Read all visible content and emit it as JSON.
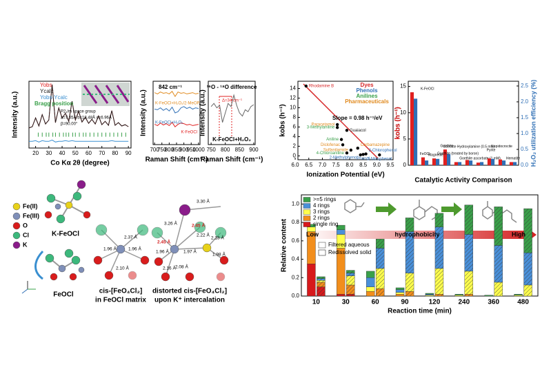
{
  "chart_data": [
    {
      "type": "line",
      "x_label": "Co Kα 2θ (degree)",
      "y_label": "Intensity (a.u.)",
      "annotations": [
        "P2₁/m space group",
        "a=7.65Å b=18.48Å c=6.96Å",
        "β=90.00°"
      ],
      "xlim": [
        15,
        92
      ],
      "xticks": [
        20,
        30,
        40,
        50,
        60,
        70,
        80,
        90
      ],
      "ylim": [
        0,
        10
      ],
      "x": [
        15,
        17.5,
        20,
        22.5,
        25,
        27.5,
        30,
        32.5,
        35,
        37.5,
        40,
        42.5,
        45,
        47.5,
        50,
        52.5,
        55,
        57.5,
        60,
        62.5,
        65,
        67.5,
        70,
        72.5,
        75,
        77.5,
        80,
        82.5,
        85,
        87.5,
        90
      ],
      "series": [
        {
          "name": "Yobs",
          "color": "#e02020",
          "values": [
            3.0,
            3.2,
            4.5,
            3.3,
            5.0,
            3.6,
            4.2,
            9.5,
            3.8,
            6.0,
            4.5,
            5.2,
            4.0,
            7.0,
            4.2,
            5.5,
            3.9,
            4.6,
            3.7,
            4.3,
            3.6,
            4.8,
            3.5,
            4.0,
            3.4,
            5.6,
            3.4,
            3.8,
            3.3,
            3.5,
            3.2
          ]
        },
        {
          "name": "Ycalc",
          "color": "#222222",
          "values": [
            3.0,
            3.2,
            4.5,
            3.3,
            5.0,
            3.6,
            4.2,
            9.5,
            3.8,
            6.0,
            4.5,
            5.2,
            4.0,
            7.0,
            4.2,
            5.5,
            3.9,
            4.6,
            3.7,
            4.3,
            3.6,
            4.8,
            3.5,
            4.0,
            3.4,
            5.6,
            3.4,
            3.8,
            3.3,
            3.5,
            3.2
          ]
        },
        {
          "name": "Yobs-Ycalc",
          "color": "#3a8fd0",
          "values": [
            1.0,
            1.0,
            1.1,
            0.9,
            1.1,
            1.0,
            1.0,
            1.2,
            0.9,
            1.0,
            1.0,
            1.1,
            1.0,
            1.1,
            1.0,
            1.0,
            1.0,
            1.0,
            1.0,
            1.0,
            1.0,
            1.0,
            1.0,
            1.0,
            1.0,
            1.1,
            1.0,
            1.0,
            1.0,
            1.0,
            1.0
          ]
        }
      ],
      "bragg_label": "Bragg position",
      "bragg_color": "#3aa04a",
      "bragg_level": 2,
      "bragg_positions": [
        22,
        25,
        28,
        30,
        33,
        35,
        38,
        41,
        43,
        45,
        48,
        50,
        53,
        56,
        58,
        61,
        64,
        67,
        70,
        73,
        76,
        79,
        82,
        85,
        88
      ]
    },
    {
      "type": "line",
      "x_label": "Raman Shift (cm⁻¹)",
      "y_label": "Intensity (a.u.)",
      "annotations": [
        "842 cm⁻¹"
      ],
      "xlim": [
        690,
        1010
      ],
      "xticks": [
        700,
        750,
        800,
        850,
        900,
        950,
        1000
      ],
      "ylim": [
        0,
        10
      ],
      "x": [
        700,
        720,
        740,
        760,
        780,
        800,
        820,
        840,
        860,
        880,
        900,
        920,
        940,
        960,
        980,
        1000
      ],
      "series": [
        {
          "name": "K-FeOCl+H₂O₂/2-MeOP",
          "color": "#e08a1e",
          "values": [
            8.2,
            8.0,
            8.3,
            8.1,
            8.2,
            8.0,
            8.4,
            7.6,
            8.3,
            8.1,
            8.2,
            8.0,
            8.1,
            8.2,
            8.0,
            8.1
          ]
        },
        {
          "name": "K-FeOCl+H₂O₂",
          "color": "#2f6fb5",
          "values": [
            5.6,
            5.5,
            5.8,
            5.4,
            5.7,
            5.3,
            5.9,
            5.0,
            5.2,
            5.8,
            6.0,
            5.7,
            5.9,
            5.6,
            5.8,
            5.7
          ]
        },
        {
          "name": "K-FeOCl",
          "color": "#e02020",
          "values": [
            3.2,
            3.0,
            3.4,
            3.1,
            3.3,
            3.0,
            3.5,
            2.8,
            3.2,
            3.4,
            3.3,
            3.1,
            3.2,
            3.0,
            3.1,
            3.2
          ]
        }
      ]
    },
    {
      "type": "line",
      "title": "¹⁶O - ¹⁸O difference",
      "x_label": "Raman Shift (cm⁻¹)",
      "y_label": "Intensity (a.u.)",
      "annotations": [
        "Δ=34 cm⁻¹",
        "K-FeOCl+H₂O₂"
      ],
      "xlim": [
        740,
        905
      ],
      "xticks": [
        750,
        800,
        850,
        900
      ],
      "ylim": [
        0,
        10
      ],
      "x": [
        750,
        760,
        770,
        780,
        790,
        800,
        810,
        820,
        830,
        840,
        850,
        860,
        870,
        880,
        890,
        900
      ],
      "series": [
        {
          "name": "K-FeOCl+H₂O₂",
          "color": "#666666",
          "values": [
            6,
            6.5,
            5.8,
            6.2,
            3.5,
            5.0,
            6.5,
            6.0,
            7.8,
            6.2,
            5.0,
            4.5,
            5.5,
            5.2,
            6.0,
            6.3
          ]
        }
      ]
    },
    {
      "type": "scatter",
      "x_label": "Ionization Potential (eV)",
      "y_label": "kobs (h⁻¹)",
      "annotation": "Slope = 0.98 h⁻¹/eV",
      "xlim": [
        6.1,
        9.6
      ],
      "xticks": [
        {
          "value": 6,
          "label": "6.0"
        },
        6.5,
        {
          "value": 7,
          "label": "7.0"
        },
        7.5,
        {
          "value": 8,
          "label": "8.0"
        },
        8.5,
        {
          "value": 9,
          "label": "9.0"
        },
        9.5
      ],
      "ylim": [
        -0.8,
        15.5
      ],
      "yticks": [
        0,
        2,
        4,
        6,
        8,
        10,
        12,
        14
      ],
      "legend": [
        {
          "name": "Dyes",
          "color": "#d62728"
        },
        {
          "name": "Phenols",
          "color": "#2f6fb5"
        },
        {
          "name": "Anilines",
          "color": "#3aa04a"
        },
        {
          "name": "Pharmaceuticals",
          "color": "#e08a1e"
        }
      ],
      "points": [
        {
          "label": "Rhodamine B",
          "x": 6.4,
          "y": 14.5,
          "color": "#d62728"
        },
        {
          "label": "Paracetamol",
          "x": 7.55,
          "y": 6.5,
          "color": "#e08a1e"
        },
        {
          "label": "3-Methylaniline",
          "x": 7.55,
          "y": 5.9,
          "color": "#3aa04a"
        },
        {
          "label": "Guaiacol",
          "x": 7.9,
          "y": 5.3,
          "color": "#222222"
        },
        {
          "label": "Aniline",
          "x": 7.7,
          "y": 3.4,
          "color": "#3aa04a"
        },
        {
          "label": "Diclofenac",
          "x": 7.75,
          "y": 2.3,
          "color": "#e08a1e"
        },
        {
          "label": "Sulfanilamide",
          "x": 8.05,
          "y": 1.2,
          "color": "#e08a1e"
        },
        {
          "label": "Carbamazepine",
          "x": 8.3,
          "y": 1.6,
          "color": "#e08a1e"
        },
        {
          "label": "4-Chloroaniline",
          "x": 7.9,
          "y": 0.6,
          "color": "#3aa04a"
        },
        {
          "label": "2-Methylphenol",
          "x": 8.4,
          "y": 0.2,
          "color": "#2f6fb5"
        },
        {
          "label": "Phenol",
          "x": 8.5,
          "y": 0.3,
          "color": "#2f6fb5"
        },
        {
          "label": "2-Chlorophenol",
          "x": 8.6,
          "y": 0.4,
          "color": "#2f6fb5"
        },
        {
          "label": "2-Nitrophenol",
          "x": 9.1,
          "y": 0.2,
          "color": "#2f6fb5"
        }
      ]
    },
    {
      "type": "bar",
      "x_label": "Catalytic Activity Comparison",
      "y_label": "kobs (h⁻¹)",
      "y2_label": "H₂O₂ utilization efficiency (%)",
      "categories": [
        "K-FeOCl",
        "FeOCl",
        "Magnetite",
        "Goethite",
        "Goethite (treated by boron)",
        "Goethite Hydroxylamine (0.5 mM)",
        "Goethite ascorbate (1 mM)",
        "Pyrite",
        "Lepidocrocite",
        "Hematite"
      ],
      "ylim": [
        0,
        16
      ],
      "yticks": [
        0,
        5,
        10,
        15
      ],
      "y2lim": [
        0,
        2.65
      ],
      "y2ticks": [
        {
          "value": 0,
          "label": "0.0"
        },
        0.5,
        {
          "value": 1,
          "label": "1.0"
        },
        1.5,
        {
          "value": 2,
          "label": "2.0"
        },
        2.5
      ],
      "series": [
        {
          "color": "#e02020",
          "values": [
            13.9,
            1.5,
            1.3,
            3.0,
            0.6,
            1.0,
            0.5,
            1.3,
            1.1,
            0.6
          ]
        },
        {
          "color": "#2f6fb5",
          "axis": "y2",
          "values": [
            2.1,
            0.15,
            0.2,
            0.35,
            0.1,
            0.15,
            0.1,
            0.2,
            0.15,
            0.1
          ]
        }
      ]
    },
    {
      "type": "stacked_bar",
      "x_label": "Reaction time (min)",
      "y_label": "Relative content",
      "categories": [
        "10",
        "30",
        "60",
        "90",
        "120",
        "240",
        "360",
        "480"
      ],
      "ylim": [
        0,
        1.1
      ],
      "yticks": [
        {
          "value": 0,
          "label": "0.0"
        },
        0.2,
        0.4,
        0.6,
        0.8,
        {
          "value": 1,
          "label": "1.0"
        }
      ],
      "pattern_legend": [
        "Filtered aqueous",
        "Redissolved solid"
      ],
      "hydrophobicity": [
        "Low",
        "hydrophobicity",
        "High"
      ],
      "series": [
        {
          "name": "single ring",
          "color": "#d7191c",
          "values": [
            0.35,
            0.02,
            0,
            0,
            0,
            0,
            0,
            0
          ],
          "solid_values": [
            0.1,
            0.02,
            0,
            0,
            0,
            0,
            0,
            0
          ]
        },
        {
          "name": "2 rings",
          "color": "#f28e1c",
          "values": [
            0.35,
            0.5,
            0.05,
            0.02,
            0,
            0,
            0,
            0
          ],
          "solid_values": [
            0.05,
            0.1,
            0.08,
            0.05,
            0.02,
            0.02,
            0,
            0
          ]
        },
        {
          "name": "3 rings",
          "color": "#ffff4d",
          "values": [
            0.05,
            0.15,
            0.05,
            0.02,
            0.01,
            0.01,
            0,
            0.01
          ],
          "solid_values": [
            0.02,
            0.1,
            0.22,
            0.2,
            0.28,
            0.25,
            0.15,
            0.12
          ]
        },
        {
          "name": "4 rings",
          "color": "#4a90d9",
          "values": [
            0,
            0.05,
            0.1,
            0.03,
            0.01,
            0,
            0,
            0
          ],
          "solid_values": [
            0.02,
            0.03,
            0.22,
            0.45,
            0.45,
            0.4,
            0.4,
            0.35
          ]
        },
        {
          "name": ">=5 rings",
          "color": "#3aa04a",
          "values": [
            0.03,
            0.05,
            0.07,
            0.02,
            0.01,
            0.01,
            0.01,
            0.01
          ],
          "solid_values": [
            0.02,
            0.03,
            0.1,
            0.15,
            0.15,
            0.32,
            0.42,
            0.48
          ]
        }
      ]
    }
  ],
  "diagram": {
    "legend": [
      {
        "name": "Fe(II)",
        "color": "#e8d21a"
      },
      {
        "name": "Fe(III)",
        "color": "#7f8fb8"
      },
      {
        "name": "O",
        "color": "#d91c1c"
      },
      {
        "name": "Cl",
        "color": "#3cb87c"
      },
      {
        "name": "K",
        "color": "#8a1c8a"
      }
    ],
    "labels": [
      "K-FeOCl",
      "FeOCl",
      "cis-[FeO₄Cl₂]",
      "in FeOCl matrix",
      "distorted cis-[FeO₄Cl₂]",
      "upon K⁺ intercalation"
    ],
    "bonds": [
      "2.37 Å",
      "1.96 Å",
      "1.96 Å",
      "2.10 Å",
      "3.26 Å",
      "3.30 Å",
      "2.45 Å",
      "1.96 Å",
      "1.97 Å",
      "2.16 Å",
      "2.08 Å",
      "2.45 Å",
      "2.22 Å",
      "2.18 Å",
      "1.98 Å"
    ]
  }
}
